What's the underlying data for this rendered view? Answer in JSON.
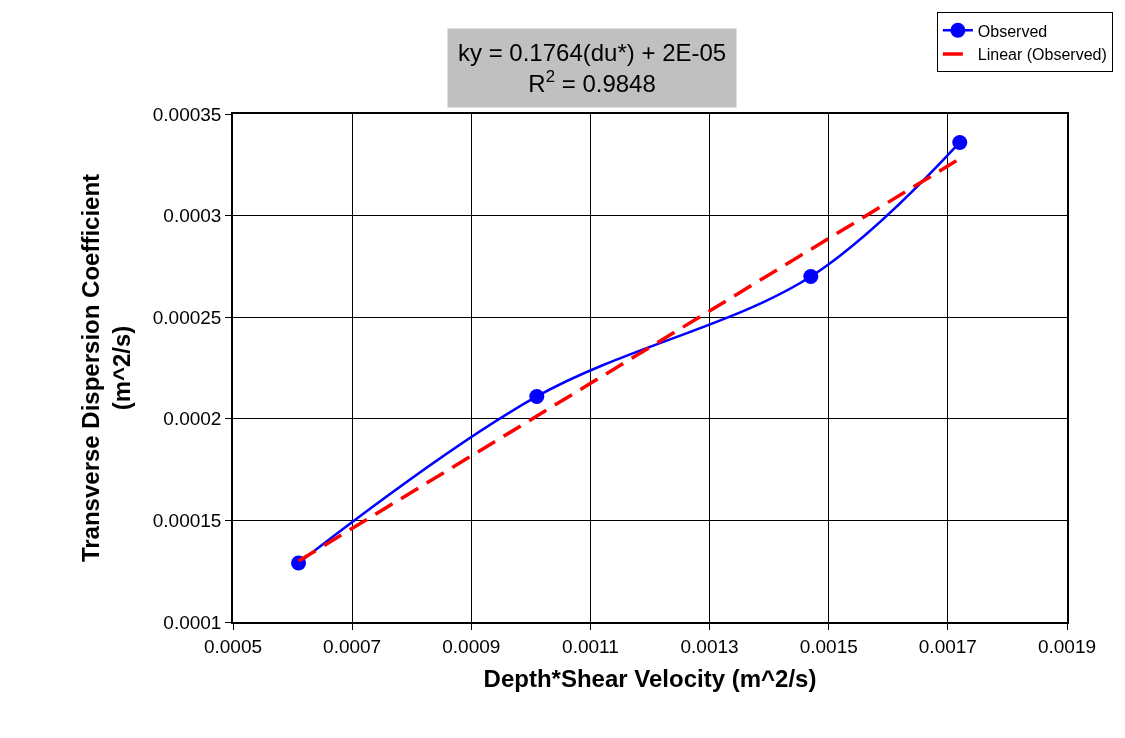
{
  "chart_data": {
    "type": "line",
    "xlabel": "Depth*Shear Velocity (m^2/s)",
    "ylabel": "Transverse Dispersion Coefficient\n(m^2/s)",
    "annotations": [
      "ky = 0.1764(du*) + 2E-05\nR$^{2}$ = 0.9848"
    ],
    "series": [
      {
        "name": "Observed",
        "color": "#0000ff",
        "x": [
          0.00061,
          0.00101,
          0.00147,
          0.00172
        ],
        "values": [
          0.000129,
          0.000211,
          0.00027,
          0.000336
        ],
        "marker": "circle",
        "line_style": "solid"
      },
      {
        "name": "Linear (Observed)",
        "color": "#ff0000",
        "x": [
          0.00061,
          0.00172
        ],
        "values": [
          0.00013,
          0.000328
        ],
        "marker": "none",
        "line_style": "dashed"
      }
    ],
    "xlim": [
      0.0005,
      0.0019
    ],
    "xticks": [
      0.0005,
      0.0007,
      0.0009,
      0.0011,
      0.0013,
      0.0015,
      0.0017,
      0.0019
    ],
    "ylim": [
      0.0001,
      0.00035
    ],
    "yticks": [
      0.0001,
      0.00015,
      0.0002,
      0.00025,
      0.0003,
      0.00035
    ],
    "grid": true,
    "legend": "top right"
  }
}
